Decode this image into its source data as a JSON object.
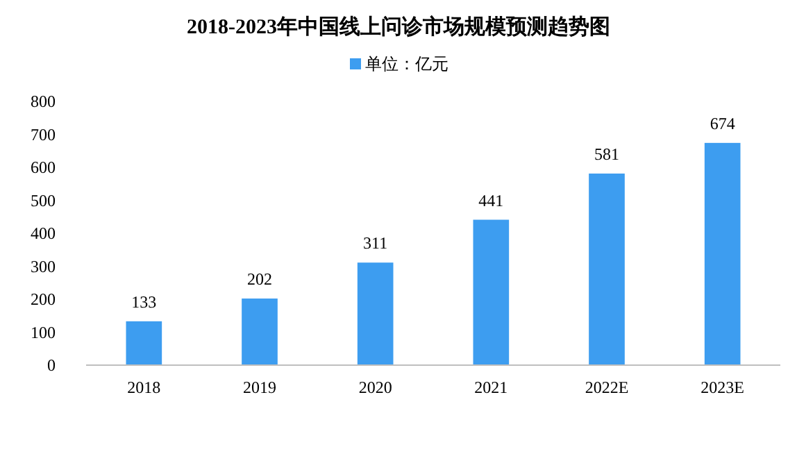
{
  "chart_data": {
    "type": "bar",
    "title": "2018-2023年中国线上问诊市场规模预测趋势图",
    "categories": [
      "2018",
      "2019",
      "2020",
      "2021",
      "2022E",
      "2023E"
    ],
    "series": [
      {
        "name": "单位：亿元",
        "color": "#3d9df0",
        "values": [
          133,
          202,
          311,
          441,
          581,
          674
        ]
      }
    ],
    "ylim": [
      0,
      800
    ],
    "yticks": [
      0,
      100,
      200,
      300,
      400,
      500,
      600,
      700,
      800
    ],
    "data_labels": true,
    "legend": "top"
  }
}
